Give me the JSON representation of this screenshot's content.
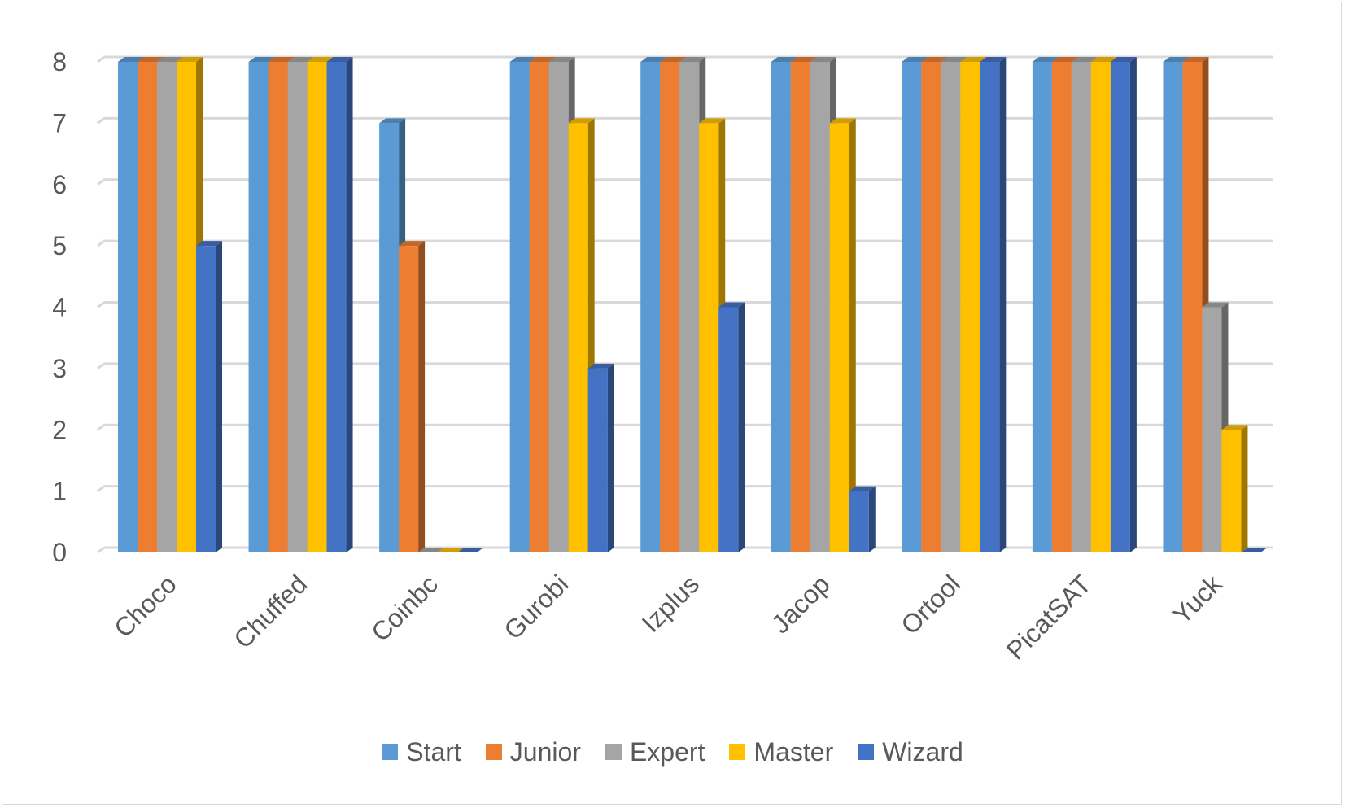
{
  "chart_data": {
    "type": "bar",
    "title": "",
    "xlabel": "",
    "ylabel": "",
    "ylim": [
      0,
      8
    ],
    "yticks": [
      "0",
      "1",
      "2",
      "3",
      "4",
      "5",
      "6",
      "7",
      "8"
    ],
    "grid": true,
    "legend_position": "bottom",
    "categories": [
      "Choco",
      "Chuffed",
      "Coinbc",
      "Gurobi",
      "Izplus",
      "Jacop",
      "Ortool",
      "PicatSAT",
      "Yuck"
    ],
    "series": [
      {
        "name": "Start",
        "color": "#5b9bd5",
        "values": [
          8,
          8,
          7,
          8,
          8,
          8,
          8,
          8,
          8
        ]
      },
      {
        "name": "Junior",
        "color": "#ed7d31",
        "values": [
          8,
          8,
          5,
          8,
          8,
          8,
          8,
          8,
          8
        ]
      },
      {
        "name": "Expert",
        "color": "#a5a5a5",
        "values": [
          8,
          8,
          0,
          8,
          8,
          8,
          8,
          8,
          4
        ]
      },
      {
        "name": "Master",
        "color": "#ffc000",
        "values": [
          8,
          8,
          0,
          7,
          7,
          7,
          8,
          8,
          2
        ]
      },
      {
        "name": "Wizard",
        "color": "#4472c4",
        "values": [
          5,
          8,
          0,
          3,
          4,
          1,
          8,
          8,
          0
        ]
      }
    ]
  }
}
